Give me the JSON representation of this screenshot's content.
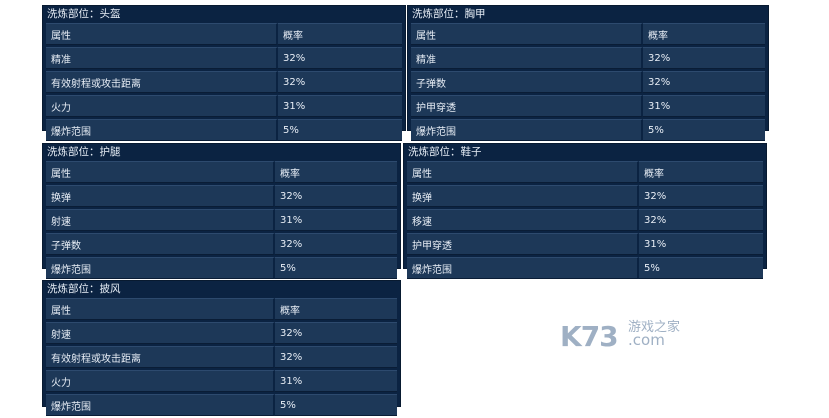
{
  "header": {
    "attr": "属性",
    "prob": "概率"
  },
  "panels": [
    {
      "title": "洗炼部位：头盔",
      "rows": [
        [
          "精准",
          "32%"
        ],
        [
          "有效射程或攻击距离",
          "32%"
        ],
        [
          "火力",
          "31%"
        ],
        [
          "爆炸范围",
          "5%"
        ]
      ]
    },
    {
      "title": "洗炼部位：胸甲",
      "rows": [
        [
          "精准",
          "32%"
        ],
        [
          "子弹数",
          "32%"
        ],
        [
          "护甲穿透",
          "31%"
        ],
        [
          "爆炸范围",
          "5%"
        ]
      ]
    },
    {
      "title": "洗炼部位：护腿",
      "rows": [
        [
          "换弹",
          "32%"
        ],
        [
          "射速",
          "31%"
        ],
        [
          "子弹数",
          "32%"
        ],
        [
          "爆炸范围",
          "5%"
        ]
      ]
    },
    {
      "title": "洗炼部位：鞋子",
      "rows": [
        [
          "换弹",
          "32%"
        ],
        [
          "移速",
          "32%"
        ],
        [
          "护甲穿透",
          "31%"
        ],
        [
          "爆炸范围",
          "5%"
        ]
      ]
    },
    {
      "title": "洗炼部位：披风",
      "rows": [
        [
          "射速",
          "32%"
        ],
        [
          "有效射程或攻击距离",
          "32%"
        ],
        [
          "火力",
          "31%"
        ],
        [
          "爆炸范围",
          "5%"
        ]
      ]
    }
  ],
  "watermark": {
    "logo": "K73",
    "text1": "游戏之家",
    "text2": ".com"
  }
}
